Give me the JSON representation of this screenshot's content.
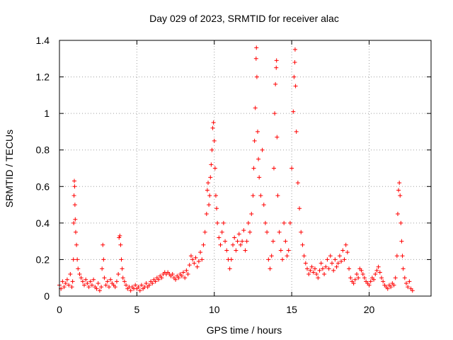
{
  "chart_data": {
    "type": "scatter",
    "title": "Day 029 of 2023, SRMTID for receiver alac",
    "xlabel": "GPS time / hours",
    "ylabel": "SRMTID / TECUs",
    "xlim": [
      0,
      24
    ],
    "ylim": [
      0,
      1.4
    ],
    "xticks": [
      {
        "value": 0,
        "label": "0"
      },
      {
        "value": 5,
        "label": "5"
      },
      {
        "value": 10,
        "label": "10"
      },
      {
        "value": 15,
        "label": "15"
      },
      {
        "value": 20,
        "label": "20"
      }
    ],
    "yticks": [
      {
        "value": 0,
        "label": "0"
      },
      {
        "value": 0.2,
        "label": "0.2"
      },
      {
        "value": 0.4,
        "label": "0.4"
      },
      {
        "value": 0.6,
        "label": "0.6"
      },
      {
        "value": 0.8,
        "label": "0.8"
      },
      {
        "value": 1.0,
        "label": "1"
      },
      {
        "value": 1.2,
        "label": "1.2"
      },
      {
        "value": 1.4,
        "label": "1.4"
      }
    ],
    "grid": true,
    "marker": "+",
    "color": "#ff0000",
    "series": [
      {
        "name": "SRMTID",
        "points": [
          [
            0.0,
            0.06
          ],
          [
            0.1,
            0.04
          ],
          [
            0.2,
            0.08
          ],
          [
            0.3,
            0.05
          ],
          [
            0.4,
            0.07
          ],
          [
            0.5,
            0.09
          ],
          [
            0.6,
            0.06
          ],
          [
            0.7,
            0.12
          ],
          [
            0.8,
            0.05
          ],
          [
            0.85,
            0.08
          ],
          [
            0.9,
            0.2
          ],
          [
            0.92,
            0.4
          ],
          [
            0.94,
            0.55
          ],
          [
            0.96,
            0.63
          ],
          [
            0.98,
            0.6
          ],
          [
            1.0,
            0.5
          ],
          [
            1.02,
            0.42
          ],
          [
            1.05,
            0.35
          ],
          [
            1.1,
            0.28
          ],
          [
            1.15,
            0.2
          ],
          [
            1.2,
            0.15
          ],
          [
            1.3,
            0.12
          ],
          [
            1.4,
            0.1
          ],
          [
            1.5,
            0.08
          ],
          [
            1.6,
            0.06
          ],
          [
            1.7,
            0.09
          ],
          [
            1.8,
            0.07
          ],
          [
            1.9,
            0.05
          ],
          [
            2.0,
            0.08
          ],
          [
            2.1,
            0.06
          ],
          [
            2.2,
            0.09
          ],
          [
            2.3,
            0.05
          ],
          [
            2.4,
            0.04
          ],
          [
            2.5,
            0.07
          ],
          [
            2.6,
            0.03
          ],
          [
            2.7,
            0.05
          ],
          [
            2.75,
            0.15
          ],
          [
            2.8,
            0.28
          ],
          [
            2.85,
            0.2
          ],
          [
            2.9,
            0.1
          ],
          [
            3.0,
            0.06
          ],
          [
            3.1,
            0.08
          ],
          [
            3.2,
            0.05
          ],
          [
            3.3,
            0.09
          ],
          [
            3.4,
            0.07
          ],
          [
            3.5,
            0.06
          ],
          [
            3.6,
            0.05
          ],
          [
            3.7,
            0.08
          ],
          [
            3.8,
            0.12
          ],
          [
            3.85,
            0.32
          ],
          [
            3.9,
            0.33
          ],
          [
            3.95,
            0.28
          ],
          [
            4.0,
            0.2
          ],
          [
            4.05,
            0.15
          ],
          [
            4.1,
            0.1
          ],
          [
            4.2,
            0.08
          ],
          [
            4.3,
            0.06
          ],
          [
            4.4,
            0.04
          ],
          [
            4.5,
            0.05
          ],
          [
            4.6,
            0.03
          ],
          [
            4.7,
            0.05
          ],
          [
            4.8,
            0.04
          ],
          [
            4.9,
            0.06
          ],
          [
            5.0,
            0.04
          ],
          [
            5.1,
            0.05
          ],
          [
            5.2,
            0.03
          ],
          [
            5.3,
            0.06
          ],
          [
            5.4,
            0.04
          ],
          [
            5.5,
            0.05
          ],
          [
            5.6,
            0.07
          ],
          [
            5.7,
            0.05
          ],
          [
            5.8,
            0.06
          ],
          [
            5.9,
            0.08
          ],
          [
            6.0,
            0.07
          ],
          [
            6.1,
            0.09
          ],
          [
            6.2,
            0.08
          ],
          [
            6.3,
            0.1
          ],
          [
            6.4,
            0.09
          ],
          [
            6.5,
            0.11
          ],
          [
            6.6,
            0.1
          ],
          [
            6.7,
            0.12
          ],
          [
            6.8,
            0.13
          ],
          [
            6.9,
            0.12
          ],
          [
            7.0,
            0.13
          ],
          [
            7.1,
            0.12
          ],
          [
            7.2,
            0.11
          ],
          [
            7.3,
            0.12
          ],
          [
            7.4,
            0.1
          ],
          [
            7.5,
            0.09
          ],
          [
            7.6,
            0.11
          ],
          [
            7.7,
            0.1
          ],
          [
            7.8,
            0.12
          ],
          [
            7.9,
            0.11
          ],
          [
            8.0,
            0.13
          ],
          [
            8.1,
            0.1
          ],
          [
            8.2,
            0.14
          ],
          [
            8.3,
            0.12
          ],
          [
            8.4,
            0.17
          ],
          [
            8.5,
            0.22
          ],
          [
            8.6,
            0.2
          ],
          [
            8.7,
            0.18
          ],
          [
            8.8,
            0.21
          ],
          [
            8.9,
            0.16
          ],
          [
            9.0,
            0.19
          ],
          [
            9.1,
            0.24
          ],
          [
            9.2,
            0.2
          ],
          [
            9.3,
            0.28
          ],
          [
            9.4,
            0.35
          ],
          [
            9.5,
            0.45
          ],
          [
            9.55,
            0.58
          ],
          [
            9.6,
            0.62
          ],
          [
            9.65,
            0.5
          ],
          [
            9.7,
            0.55
          ],
          [
            9.75,
            0.65
          ],
          [
            9.8,
            0.72
          ],
          [
            9.85,
            0.8
          ],
          [
            9.9,
            0.92
          ],
          [
            9.95,
            0.95
          ],
          [
            10.0,
            0.85
          ],
          [
            10.05,
            0.7
          ],
          [
            10.1,
            0.55
          ],
          [
            10.15,
            0.48
          ],
          [
            10.2,
            0.4
          ],
          [
            10.3,
            0.32
          ],
          [
            10.4,
            0.28
          ],
          [
            10.5,
            0.35
          ],
          [
            10.6,
            0.4
          ],
          [
            10.7,
            0.3
          ],
          [
            10.8,
            0.25
          ],
          [
            10.9,
            0.2
          ],
          [
            11.0,
            0.15
          ],
          [
            11.1,
            0.2
          ],
          [
            11.2,
            0.28
          ],
          [
            11.3,
            0.32
          ],
          [
            11.4,
            0.25
          ],
          [
            11.5,
            0.3
          ],
          [
            11.6,
            0.34
          ],
          [
            11.7,
            0.28
          ],
          [
            11.8,
            0.3
          ],
          [
            11.9,
            0.36
          ],
          [
            12.0,
            0.25
          ],
          [
            12.1,
            0.3
          ],
          [
            12.2,
            0.4
          ],
          [
            12.3,
            0.35
          ],
          [
            12.4,
            0.45
          ],
          [
            12.5,
            0.55
          ],
          [
            12.55,
            0.7
          ],
          [
            12.6,
            0.85
          ],
          [
            12.65,
            1.03
          ],
          [
            12.7,
            1.3
          ],
          [
            12.72,
            1.36
          ],
          [
            12.75,
            1.2
          ],
          [
            12.8,
            0.9
          ],
          [
            12.85,
            0.75
          ],
          [
            12.9,
            0.65
          ],
          [
            13.0,
            0.55
          ],
          [
            13.1,
            0.8
          ],
          [
            13.2,
            0.5
          ],
          [
            13.3,
            0.4
          ],
          [
            13.4,
            0.35
          ],
          [
            13.5,
            0.2
          ],
          [
            13.6,
            0.15
          ],
          [
            13.7,
            0.22
          ],
          [
            13.8,
            0.3
          ],
          [
            13.85,
            0.7
          ],
          [
            13.9,
            1.0
          ],
          [
            13.95,
            1.16
          ],
          [
            14.0,
            1.25
          ],
          [
            14.02,
            1.29
          ],
          [
            14.05,
            0.87
          ],
          [
            14.1,
            0.55
          ],
          [
            14.2,
            0.35
          ],
          [
            14.3,
            0.25
          ],
          [
            14.4,
            0.2
          ],
          [
            14.5,
            0.4
          ],
          [
            14.6,
            0.3
          ],
          [
            14.7,
            0.22
          ],
          [
            14.8,
            0.25
          ],
          [
            14.9,
            0.4
          ],
          [
            15.0,
            0.7
          ],
          [
            15.1,
            1.01
          ],
          [
            15.15,
            1.2
          ],
          [
            15.2,
            1.28
          ],
          [
            15.22,
            1.35
          ],
          [
            15.25,
            1.15
          ],
          [
            15.3,
            0.9
          ],
          [
            15.4,
            0.62
          ],
          [
            15.5,
            0.48
          ],
          [
            15.6,
            0.35
          ],
          [
            15.7,
            0.28
          ],
          [
            15.8,
            0.22
          ],
          [
            15.9,
            0.18
          ],
          [
            16.0,
            0.15
          ],
          [
            16.1,
            0.12
          ],
          [
            16.2,
            0.14
          ],
          [
            16.3,
            0.16
          ],
          [
            16.4,
            0.13
          ],
          [
            16.5,
            0.15
          ],
          [
            16.6,
            0.12
          ],
          [
            16.7,
            0.1
          ],
          [
            16.8,
            0.14
          ],
          [
            16.9,
            0.18
          ],
          [
            17.0,
            0.15
          ],
          [
            17.1,
            0.12
          ],
          [
            17.2,
            0.16
          ],
          [
            17.3,
            0.2
          ],
          [
            17.4,
            0.15
          ],
          [
            17.5,
            0.22
          ],
          [
            17.6,
            0.18
          ],
          [
            17.7,
            0.14
          ],
          [
            17.8,
            0.2
          ],
          [
            17.9,
            0.16
          ],
          [
            18.0,
            0.18
          ],
          [
            18.1,
            0.22
          ],
          [
            18.2,
            0.19
          ],
          [
            18.3,
            0.25
          ],
          [
            18.4,
            0.2
          ],
          [
            18.5,
            0.28
          ],
          [
            18.6,
            0.24
          ],
          [
            18.7,
            0.15
          ],
          [
            18.8,
            0.1
          ],
          [
            18.9,
            0.08
          ],
          [
            19.0,
            0.07
          ],
          [
            19.1,
            0.09
          ],
          [
            19.2,
            0.12
          ],
          [
            19.3,
            0.1
          ],
          [
            19.4,
            0.15
          ],
          [
            19.5,
            0.14
          ],
          [
            19.6,
            0.12
          ],
          [
            19.7,
            0.1
          ],
          [
            19.8,
            0.08
          ],
          [
            19.9,
            0.07
          ],
          [
            20.0,
            0.06
          ],
          [
            20.1,
            0.08
          ],
          [
            20.2,
            0.1
          ],
          [
            20.3,
            0.09
          ],
          [
            20.4,
            0.12
          ],
          [
            20.5,
            0.14
          ],
          [
            20.6,
            0.16
          ],
          [
            20.7,
            0.13
          ],
          [
            20.8,
            0.1
          ],
          [
            20.9,
            0.08
          ],
          [
            21.0,
            0.06
          ],
          [
            21.1,
            0.05
          ],
          [
            21.2,
            0.04
          ],
          [
            21.3,
            0.06
          ],
          [
            21.4,
            0.05
          ],
          [
            21.5,
            0.07
          ],
          [
            21.6,
            0.06
          ],
          [
            21.7,
            0.1
          ],
          [
            21.8,
            0.22
          ],
          [
            21.85,
            0.45
          ],
          [
            21.9,
            0.58
          ],
          [
            21.95,
            0.62
          ],
          [
            22.0,
            0.55
          ],
          [
            22.05,
            0.4
          ],
          [
            22.1,
            0.3
          ],
          [
            22.15,
            0.22
          ],
          [
            22.2,
            0.15
          ],
          [
            22.3,
            0.1
          ],
          [
            22.4,
            0.07
          ],
          [
            22.5,
            0.05
          ],
          [
            22.6,
            0.08
          ],
          [
            22.7,
            0.04
          ],
          [
            22.8,
            0.03
          ]
        ]
      }
    ]
  }
}
